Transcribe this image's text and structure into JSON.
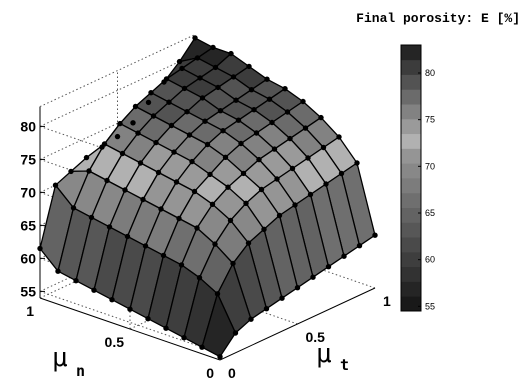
{
  "chart_data": {
    "type": "surface3d",
    "title": "Final porosity: E [%]",
    "xlabel": {
      "main": "μ",
      "sub": "n"
    },
    "ylabel": {
      "main": "μ",
      "sub": "t"
    },
    "zlabel": "",
    "x_ticks": [
      "0",
      "0.5",
      "1"
    ],
    "y_ticks": [
      "0",
      "0.5",
      "1"
    ],
    "z_ticks": [
      "55",
      "60",
      "65",
      "70",
      "75",
      "80"
    ],
    "zlim": [
      54,
      83
    ],
    "colorbar": {
      "min": 54.5,
      "max": 83,
      "ticks": [
        "55",
        "60",
        "65",
        "70",
        "75",
        "80"
      ],
      "levels": 18
    },
    "mu_n": [
      0,
      0.1,
      0.2,
      0.3,
      0.4,
      0.5,
      0.6,
      0.7,
      0.8,
      0.9,
      1
    ],
    "mu_t": [
      0,
      0.1,
      0.2,
      0.3,
      0.4,
      0.5,
      0.6,
      0.7,
      0.8,
      0.9,
      1
    ],
    "porosity": [
      [
        54.5,
        57.0,
        58.0,
        58.5,
        59.0,
        59.5,
        60.0,
        60.5,
        61.0,
        61.5,
        62.0
      ],
      [
        55.0,
        62.0,
        65.5,
        67.5,
        68.5,
        69.5,
        70.0,
        70.5,
        71.0,
        71.5,
        72.0
      ],
      [
        55.5,
        63.5,
        67.5,
        70.0,
        71.5,
        72.5,
        73.0,
        73.5,
        74.0,
        74.5,
        75.0
      ],
      [
        56.0,
        64.5,
        69.0,
        71.5,
        73.0,
        74.0,
        75.0,
        75.5,
        76.0,
        76.5,
        77.0
      ],
      [
        56.5,
        65.0,
        69.5,
        72.5,
        74.0,
        75.5,
        76.5,
        77.0,
        77.5,
        78.0,
        78.5
      ],
      [
        57.0,
        65.5,
        70.0,
        73.0,
        75.0,
        76.5,
        77.5,
        78.0,
        78.5,
        79.0,
        79.5
      ],
      [
        57.5,
        66.0,
        70.5,
        73.5,
        75.5,
        77.0,
        78.0,
        78.5,
        79.0,
        79.5,
        80.0
      ],
      [
        58.0,
        66.5,
        71.0,
        74.0,
        76.0,
        77.5,
        78.5,
        79.5,
        80.0,
        80.5,
        81.0
      ],
      [
        58.5,
        67.0,
        71.5,
        74.5,
        76.5,
        78.0,
        79.0,
        80.0,
        80.5,
        81.0,
        82.0
      ],
      [
        59.0,
        67.5,
        72.0,
        75.0,
        77.0,
        78.5,
        79.5,
        80.5,
        81.0,
        81.5,
        82.0
      ],
      [
        61.5,
        70.0,
        71.0,
        72.0,
        72.5,
        73.0,
        74.0,
        76.0,
        78.0,
        80.0,
        82.5
      ]
    ]
  }
}
